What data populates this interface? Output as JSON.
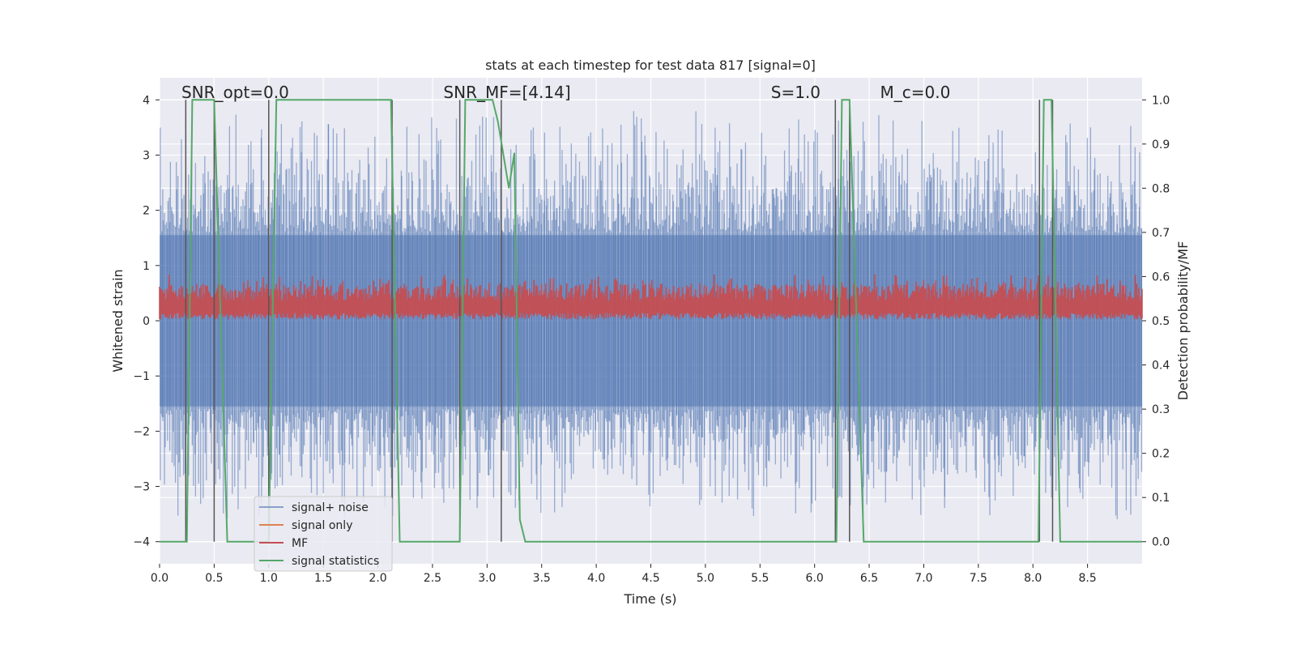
{
  "chart_data": {
    "type": "line",
    "title": "stats at each timestep for test data 817 [signal=0]",
    "xlabel": "Time (s)",
    "ylabel_left": "Whitened strain",
    "ylabel_right": "Detection probability/MF",
    "xlim": [
      0.0,
      9.0
    ],
    "ylim_left": [
      -4.4,
      4.4
    ],
    "ylim_right": [
      -0.05,
      1.05
    ],
    "x_ticks": [
      "0.0",
      "0.5",
      "1.0",
      "1.5",
      "2.0",
      "2.5",
      "3.0",
      "3.5",
      "4.0",
      "4.5",
      "5.0",
      "5.5",
      "6.0",
      "6.5",
      "7.0",
      "7.5",
      "8.0",
      "8.5"
    ],
    "y_ticks_left": [
      "−4",
      "−3",
      "−2",
      "−1",
      "0",
      "1",
      "2",
      "3",
      "4"
    ],
    "y_ticks_right": [
      "0.0",
      "0.1",
      "0.2",
      "0.3",
      "0.4",
      "0.5",
      "0.6",
      "0.7",
      "0.8",
      "0.9",
      "1.0"
    ],
    "grid": true,
    "legend_position": "lower left",
    "annotations": [
      {
        "text": "SNR_opt=0.0",
        "x": 0.2
      },
      {
        "text": "SNR_MF=[4.14]",
        "x": 2.6
      },
      {
        "text": "S=1.0",
        "x": 5.6
      },
      {
        "text": "M_c=0.0",
        "x": 6.6
      }
    ],
    "series": [
      {
        "name": "signal+ noise",
        "color": "#4c72b0",
        "alpha": 0.5,
        "style": "noise band approx ±1.6 with spikes up to ±4"
      },
      {
        "name": "signal only",
        "color": "#dd8452",
        "values": "flat 0"
      },
      {
        "name": "MF",
        "color": "#c44e52",
        "style": "band 0.5–0.6 on right axis"
      },
      {
        "name": "signal statistics",
        "color": "#55a868",
        "x": [
          0.0,
          0.25,
          0.3,
          0.5,
          0.62,
          1.0,
          1.07,
          2.12,
          2.2,
          2.75,
          2.8,
          3.05,
          3.1,
          3.2,
          3.25,
          3.3,
          3.35,
          6.2,
          6.25,
          6.32,
          6.45,
          8.05,
          8.1,
          8.17,
          8.25,
          9.0
        ],
        "y": [
          0.0,
          0.0,
          1.0,
          1.0,
          0.0,
          0.0,
          1.0,
          1.0,
          0.0,
          0.0,
          1.0,
          1.0,
          0.95,
          0.8,
          0.88,
          0.05,
          0.0,
          0.0,
          1.0,
          1.0,
          0.0,
          0.0,
          1.0,
          1.0,
          0.0,
          0.0
        ]
      }
    ],
    "vertical_lines_x": [
      0.24,
      0.5,
      1.0,
      2.13,
      2.75,
      3.13,
      6.19,
      6.32,
      8.06,
      8.18
    ]
  }
}
